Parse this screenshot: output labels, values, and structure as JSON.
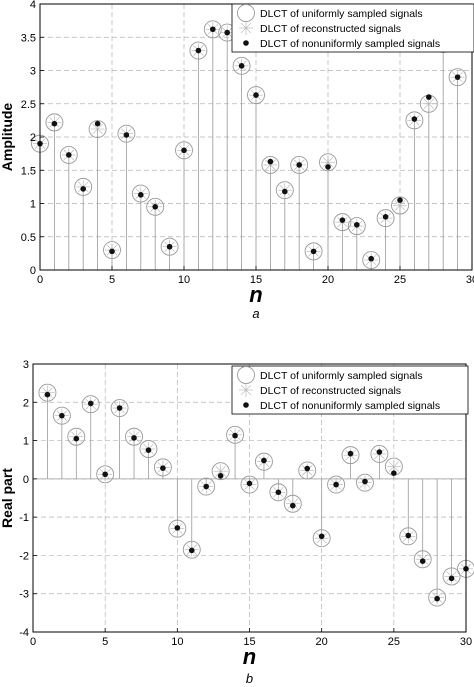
{
  "chart_data": [
    {
      "type": "stem",
      "caption": "a",
      "xlabel": "n",
      "ylabel": "Amplitude",
      "xlim": [
        0,
        30
      ],
      "ylim": [
        0,
        4
      ],
      "xticks": [
        0,
        5,
        10,
        15,
        20,
        25,
        30
      ],
      "yticks": [
        0,
        0.5,
        1,
        1.5,
        2,
        2.5,
        3,
        3.5,
        4
      ],
      "grid": true,
      "legend_position": "top-right",
      "series": [
        {
          "name": "DLCT of uniformly sampled signals",
          "marker": "circle-open",
          "x": [
            0,
            1,
            2,
            3,
            4,
            5,
            6,
            7,
            8,
            9,
            10,
            11,
            12,
            13,
            14,
            15,
            16,
            17,
            18,
            19,
            20,
            21,
            22,
            23,
            24,
            25,
            26,
            27,
            28,
            29,
            30
          ],
          "y": [
            1.9,
            2.22,
            1.73,
            1.25,
            2.12,
            0.3,
            2.05,
            1.15,
            0.95,
            0.35,
            1.8,
            3.3,
            3.62,
            3.57,
            3.07,
            2.63,
            1.58,
            1.2,
            1.58,
            0.28,
            1.62,
            0.72,
            0.66,
            0.15,
            0.78,
            0.97,
            2.25,
            2.5,
            3.4,
            2.9,
            3.46
          ]
        },
        {
          "name": "DLCT of reconstructed signals",
          "marker": "star",
          "x": [
            0,
            1,
            2,
            3,
            4,
            5,
            6,
            7,
            8,
            9,
            10,
            11,
            12,
            13,
            14,
            15,
            16,
            17,
            18,
            19,
            20,
            21,
            22,
            23,
            24,
            25,
            26,
            27,
            28,
            29,
            30
          ],
          "y": [
            1.9,
            2.22,
            1.73,
            1.25,
            2.12,
            0.3,
            2.05,
            1.15,
            0.95,
            0.35,
            1.8,
            3.3,
            3.62,
            3.57,
            3.07,
            2.63,
            1.58,
            1.2,
            1.58,
            0.28,
            1.62,
            0.72,
            0.66,
            0.15,
            0.78,
            0.97,
            2.25,
            2.5,
            3.4,
            2.9,
            3.46
          ]
        },
        {
          "name": "DLCT of nonuniformly sampled signals",
          "marker": "dot",
          "x": [
            0,
            1,
            2,
            3,
            4,
            5,
            6,
            7,
            8,
            9,
            10,
            11,
            12,
            13,
            14,
            15,
            16,
            17,
            18,
            19,
            20,
            21,
            22,
            23,
            24,
            25,
            26,
            27,
            28,
            29,
            30
          ],
          "y": [
            1.9,
            2.2,
            1.73,
            1.22,
            2.2,
            0.28,
            2.03,
            1.13,
            0.95,
            0.35,
            1.8,
            3.3,
            3.62,
            3.57,
            3.07,
            2.63,
            1.63,
            1.18,
            1.58,
            0.28,
            1.55,
            0.75,
            0.68,
            0.17,
            0.8,
            1.05,
            2.27,
            2.6,
            3.35,
            2.9,
            3.45
          ]
        }
      ]
    },
    {
      "type": "stem",
      "caption": "b",
      "xlabel": "n",
      "ylabel": "Real part",
      "xlim": [
        0,
        30
      ],
      "ylim": [
        -4,
        3
      ],
      "xticks": [
        0,
        5,
        10,
        15,
        20,
        25,
        30
      ],
      "yticks": [
        -4,
        -3,
        -2,
        -1,
        0,
        1,
        2,
        3
      ],
      "grid": true,
      "legend_position": "top-right",
      "series": [
        {
          "name": "DLCT of uniformly sampled signals",
          "marker": "circle-open",
          "x": [
            1,
            2,
            3,
            4,
            5,
            6,
            7,
            8,
            9,
            10,
            11,
            12,
            13,
            14,
            15,
            16,
            17,
            18,
            19,
            20,
            21,
            22,
            23,
            24,
            25,
            26,
            27,
            28,
            29,
            30
          ],
          "y": [
            2.25,
            1.65,
            1.1,
            1.95,
            0.12,
            1.85,
            1.1,
            0.78,
            0.3,
            -1.3,
            -1.85,
            -0.2,
            0.2,
            1.15,
            -0.15,
            0.45,
            -0.35,
            -0.65,
            0.22,
            -1.55,
            -0.15,
            0.62,
            -0.1,
            0.65,
            0.32,
            -1.5,
            -2.1,
            -3.1,
            -2.55,
            -2.35
          ]
        },
        {
          "name": "DLCT of reconstructed signals",
          "marker": "star",
          "x": [
            1,
            2,
            3,
            4,
            5,
            6,
            7,
            8,
            9,
            10,
            11,
            12,
            13,
            14,
            15,
            16,
            17,
            18,
            19,
            20,
            21,
            22,
            23,
            24,
            25,
            26,
            27,
            28,
            29,
            30
          ],
          "y": [
            2.25,
            1.65,
            1.1,
            1.95,
            0.12,
            1.85,
            1.1,
            0.78,
            0.3,
            -1.3,
            -1.85,
            -0.2,
            0.2,
            1.15,
            -0.15,
            0.45,
            -0.35,
            -0.65,
            0.22,
            -1.55,
            -0.15,
            0.62,
            -0.1,
            0.65,
            0.32,
            -1.5,
            -2.1,
            -3.1,
            -2.55,
            -2.35
          ]
        },
        {
          "name": "DLCT of nonuniformly sampled signals",
          "marker": "dot",
          "x": [
            1,
            2,
            3,
            4,
            5,
            6,
            7,
            8,
            9,
            10,
            11,
            12,
            13,
            14,
            15,
            16,
            17,
            18,
            19,
            20,
            21,
            22,
            23,
            24,
            25,
            26,
            27,
            28,
            29,
            30
          ],
          "y": [
            2.2,
            1.65,
            1.05,
            1.97,
            0.12,
            1.85,
            1.07,
            0.75,
            0.28,
            -1.28,
            -1.87,
            -0.2,
            0.08,
            1.13,
            -0.12,
            0.48,
            -0.35,
            -0.7,
            0.27,
            -1.5,
            -0.15,
            0.66,
            -0.07,
            0.7,
            0.15,
            -1.48,
            -2.15,
            -3.13,
            -2.6,
            -2.35
          ]
        }
      ]
    }
  ]
}
